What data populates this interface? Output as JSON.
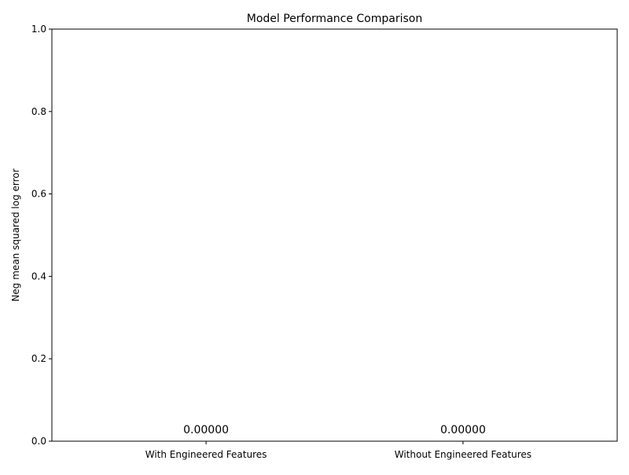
{
  "chart_data": {
    "type": "bar",
    "title": "Model Performance Comparison",
    "xlabel": "",
    "ylabel": "Neg mean squared log error",
    "categories": [
      "With Engineered Features",
      "Without Engineered Features"
    ],
    "values": [
      0.0,
      0.0
    ],
    "value_labels": [
      "0.00000",
      "0.00000"
    ],
    "ylim": [
      0,
      1
    ],
    "yticks": [
      0.0,
      0.2,
      0.4,
      0.6,
      0.8,
      1.0
    ],
    "ytick_labels": [
      "0.0",
      "0.2",
      "0.4",
      "0.6",
      "0.8",
      "1.0"
    ],
    "grid": false,
    "legend": "none",
    "bar_color": "#1f77b4"
  }
}
